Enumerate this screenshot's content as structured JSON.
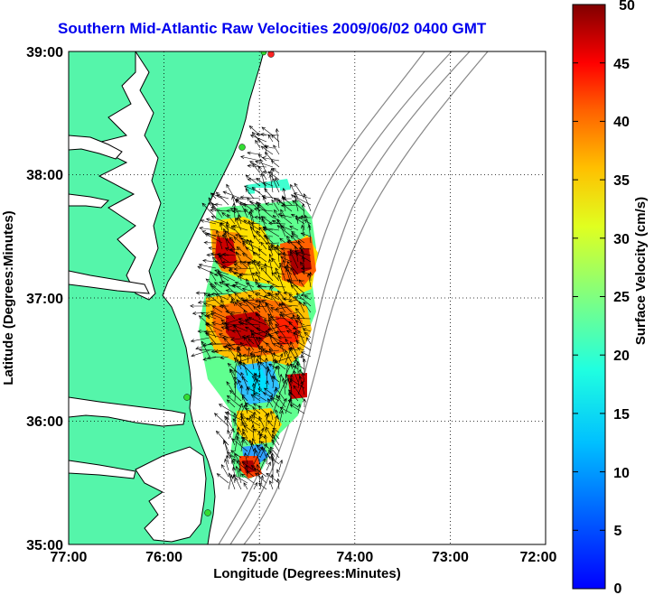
{
  "title": "Southern Mid-Atlantic Raw Velocities 2009/06/02 0400 GMT",
  "map": {
    "x_axis": {
      "label": "Longitude (Degrees:Minutes)",
      "ticks": [
        "77:00",
        "76:00",
        "75:00",
        "74:00",
        "73:00",
        "72:00"
      ],
      "range": [
        77,
        72
      ]
    },
    "y_axis": {
      "label": "Latitude (Degrees:Minutes)",
      "ticks": [
        "39:00",
        "38:00",
        "37:00",
        "36:00",
        "35:00"
      ],
      "range": [
        35,
        39
      ]
    },
    "grid": "dotted",
    "colors": {
      "land": "#55f5aa",
      "coast": "#000000",
      "bathymetry": "#888888",
      "water": "#ffffff"
    }
  },
  "colorbar": {
    "label": "Surface Velocity (cm/s)",
    "ticks": [
      "50",
      "45",
      "40",
      "35",
      "30",
      "25",
      "20",
      "15",
      "10",
      "5",
      "0"
    ],
    "range": [
      0,
      50
    ],
    "colormap": "jet"
  }
}
